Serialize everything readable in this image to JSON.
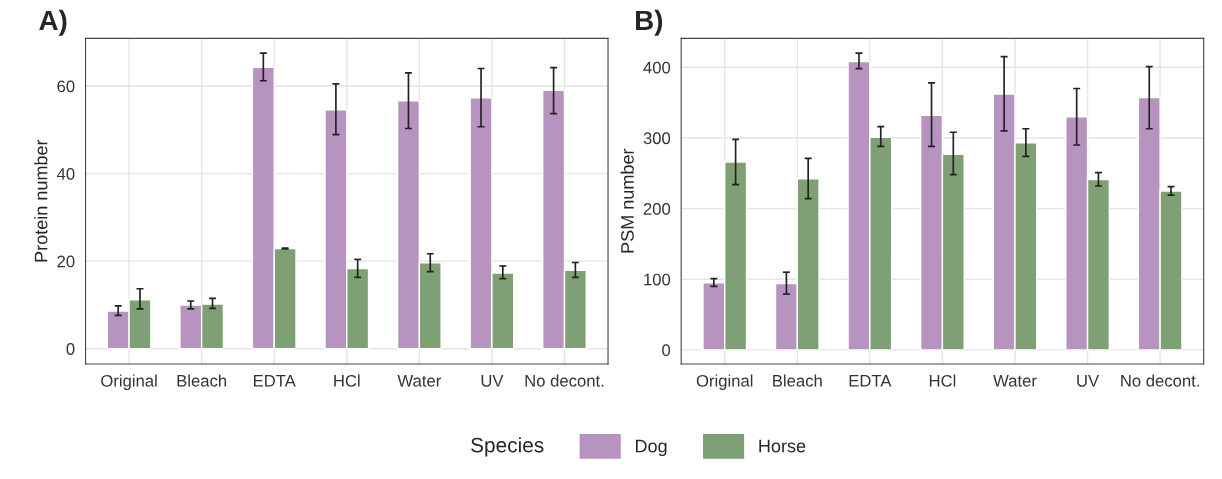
{
  "chart_data": [
    {
      "type": "bar",
      "title": "A)",
      "ylabel": "Protein number",
      "legend_title": "Species",
      "legend": "bottom",
      "grid": true,
      "categories": [
        "Original",
        "Bleach",
        "EDTA",
        "HCl",
        "Water",
        "UV",
        "No decont."
      ],
      "ylim": [
        -3.5,
        70.9
      ],
      "yticks": [
        0,
        20,
        40,
        60
      ],
      "series": [
        {
          "name": "Dog",
          "color": "#b794bf",
          "values": [
            8.6,
            10,
            64.3,
            54.6,
            56.6,
            57.3,
            59
          ],
          "errors": [
            [
              7.6,
              9.8
            ],
            [
              9.1,
              10.9
            ],
            [
              61.2,
              67.5
            ],
            [
              48.9,
              60.5
            ],
            [
              50.3,
              63
            ],
            [
              50.7,
              64
            ],
            [
              53.7,
              64.2
            ]
          ]
        },
        {
          "name": "Horse",
          "color": "#7f9f74",
          "values": [
            11.2,
            10.2,
            22.9,
            18.3,
            19.6,
            17.3,
            17.9
          ],
          "errors": [
            [
              9.1,
              13.7
            ],
            [
              9.2,
              11.5
            ],
            [
              22.8,
              23.0
            ],
            [
              16.3,
              20.4
            ],
            [
              17.6,
              21.7
            ],
            [
              16,
              18.9
            ],
            [
              16.3,
              19.7
            ]
          ]
        }
      ]
    },
    {
      "type": "bar",
      "title": "B)",
      "ylabel": "PSM number",
      "grid": true,
      "categories": [
        "Original",
        "Bleach",
        "EDTA",
        "HCl",
        "Water",
        "UV",
        "No decont."
      ],
      "ylim": [
        -20,
        441
      ],
      "yticks": [
        0,
        100,
        200,
        300,
        400
      ],
      "series": [
        {
          "color": "#b794bf",
          "values": [
            95,
            94,
            408,
            332,
            362,
            330,
            357
          ],
          "errors": [
            [
              90,
              101
            ],
            [
              79,
              110
            ],
            [
              398,
              420
            ],
            [
              288,
              378
            ],
            [
              310,
              415
            ],
            [
              290,
              370
            ],
            [
              313,
              401
            ]
          ]
        },
        {
          "color": "#7f9f74",
          "values": [
            266,
            242,
            301,
            277,
            293,
            241,
            225
          ],
          "errors": [
            [
              234,
              298
            ],
            [
              214,
              271
            ],
            [
              288,
              316
            ],
            [
              248,
              308
            ],
            [
              274,
              313
            ],
            [
              232,
              251
            ],
            [
              219,
              231
            ]
          ]
        }
      ]
    }
  ]
}
